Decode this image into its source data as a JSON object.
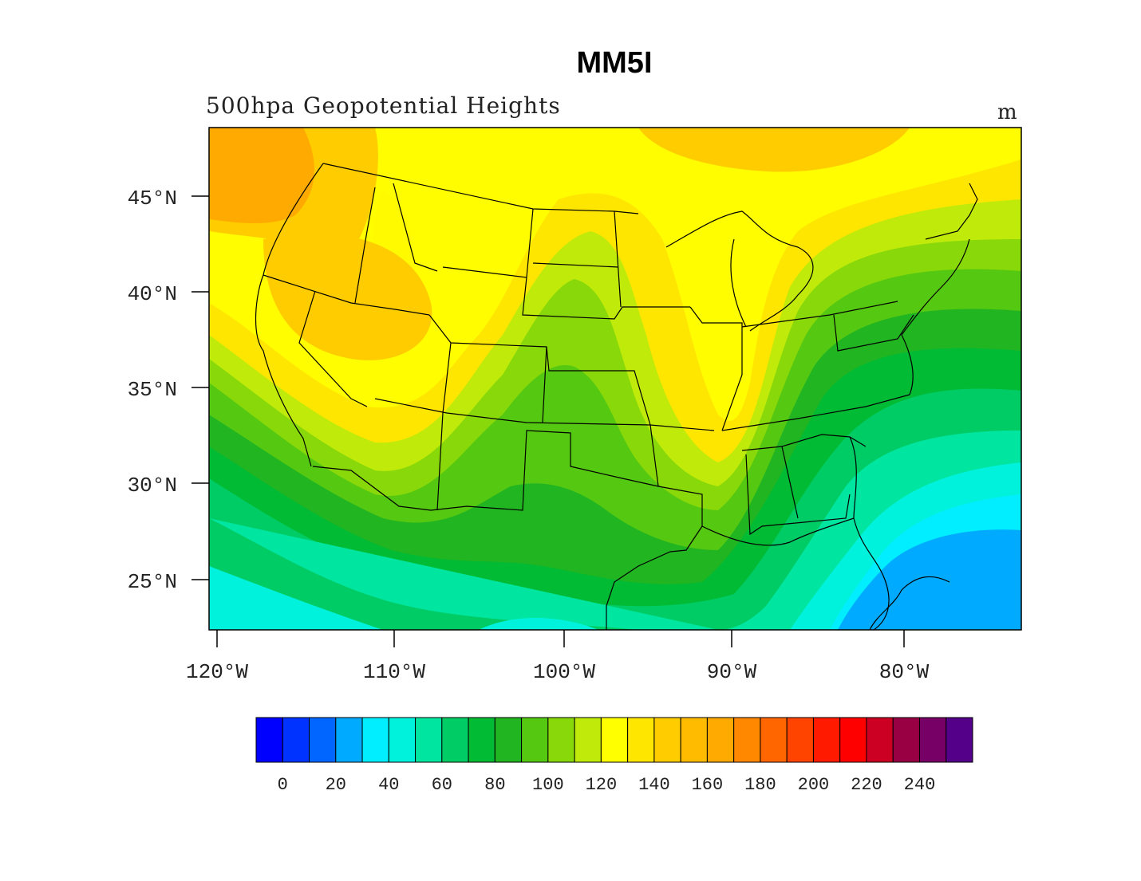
{
  "title": "MM5I",
  "subtitle": "500hpa Geopotential Heights",
  "units": "m",
  "axes": {
    "lat_labels": [
      "45°N",
      "40°N",
      "35°N",
      "30°N",
      "25°N"
    ],
    "lon_labels": [
      "120°W",
      "110°W",
      "100°W",
      "90°W",
      "80°W"
    ]
  },
  "colorbar": {
    "colors": [
      "#0000ff",
      "#0033ff",
      "#0066ff",
      "#00aaff",
      "#00eeff",
      "#00f2dd",
      "#00e5a0",
      "#00cc66",
      "#00bb33",
      "#22b522",
      "#55c811",
      "#88d80a",
      "#c0ea0a",
      "#ffff00",
      "#ffe600",
      "#ffcc00",
      "#ffbb00",
      "#ffaa00",
      "#ff8800",
      "#ff6600",
      "#ff4400",
      "#ff1a00",
      "#ff0000",
      "#cc0022",
      "#990044",
      "#770066",
      "#550088"
    ],
    "labels": [
      "0",
      "20",
      "40",
      "60",
      "80",
      "100",
      "120",
      "140",
      "160",
      "180",
      "200",
      "220",
      "240"
    ]
  }
}
